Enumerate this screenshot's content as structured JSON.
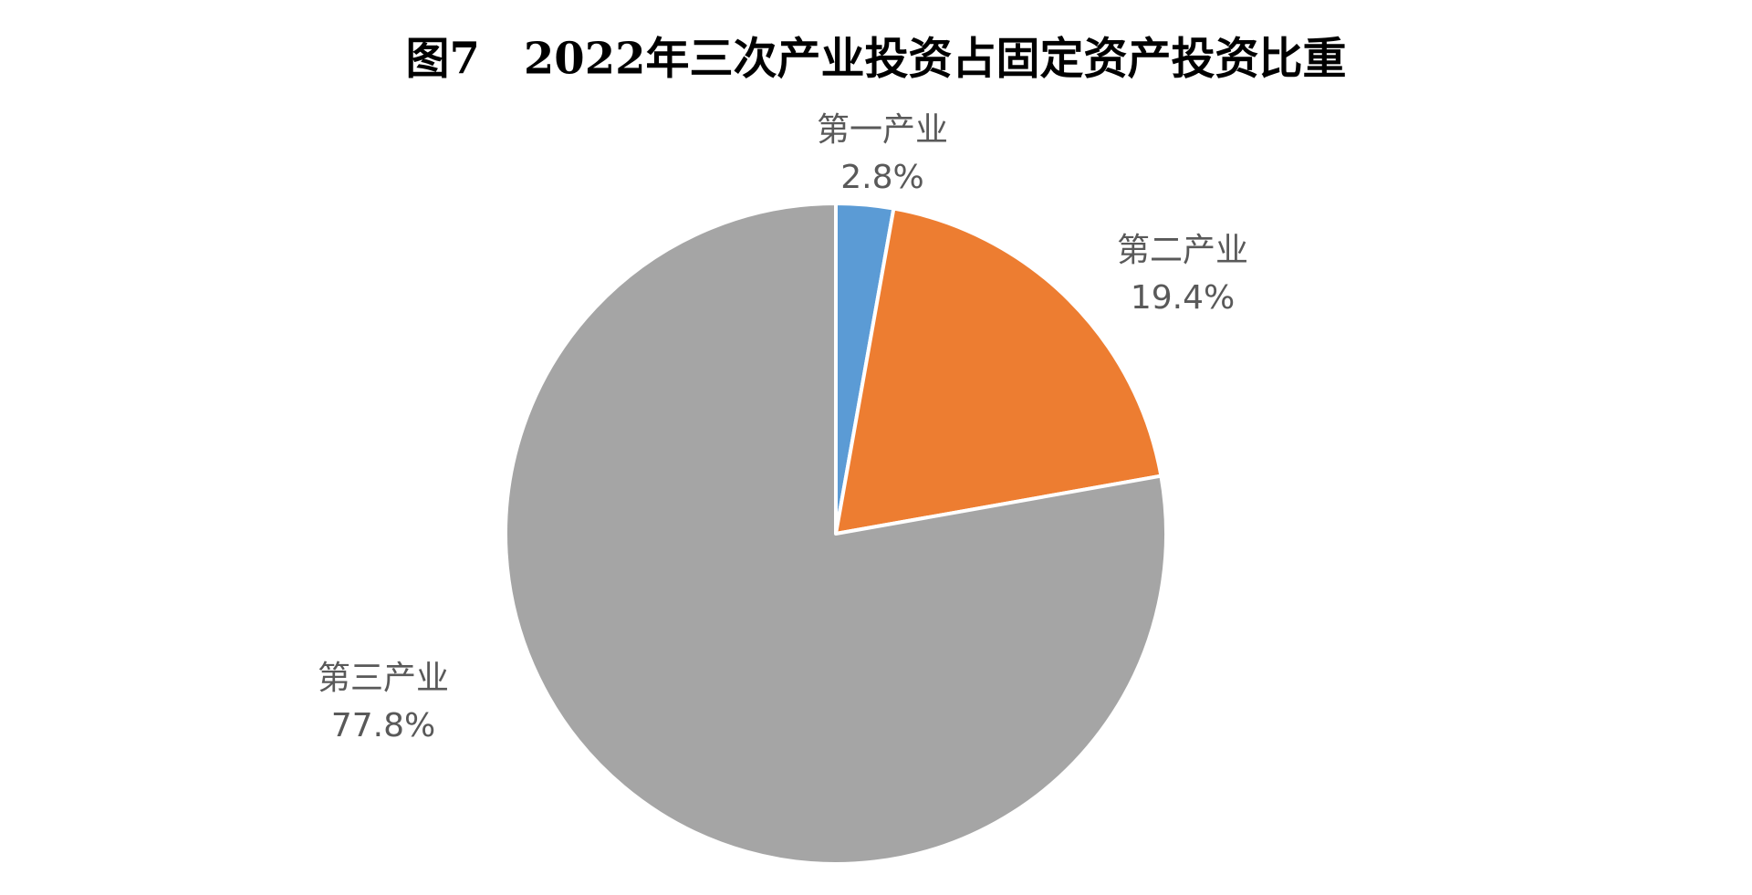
{
  "chart_data": {
    "type": "pie",
    "title": "图7　2022年三次产业投资占固定资产投资比重",
    "categories": [
      "第一产业",
      "第二产业",
      "第三产业"
    ],
    "values": [
      2.8,
      19.4,
      77.8
    ],
    "value_labels": [
      "2.8%",
      "19.4%",
      "77.8%"
    ],
    "colors": [
      "#5b9bd5",
      "#ed7d31",
      "#a5a5a5"
    ]
  }
}
